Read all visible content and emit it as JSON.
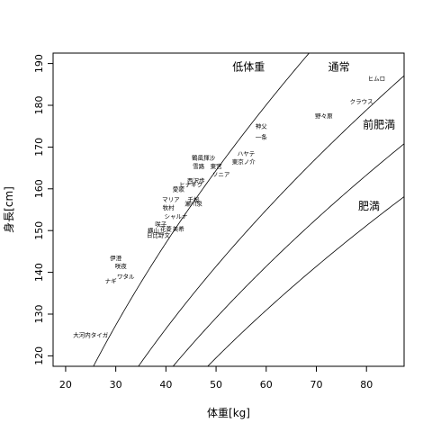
{
  "chart_data": {
    "type": "scatter",
    "title": "",
    "xlabel": "体重[kg]",
    "ylabel": "身長[cm]",
    "xlim": [
      17.5,
      87.5
    ],
    "ylim": [
      117.5,
      192.5
    ],
    "x_ticks": [
      20,
      30,
      40,
      50,
      60,
      70,
      80
    ],
    "y_ticks": [
      120,
      130,
      140,
      150,
      160,
      170,
      180,
      190
    ],
    "grid": false,
    "curves": [
      {
        "label": "低体重",
        "bmi": 18.5,
        "label_x": 56.5,
        "label_y": 188.3
      },
      {
        "label": "通常",
        "bmi": 25,
        "label_x": 74.5,
        "label_y": 188.3
      },
      {
        "label": "前肥満",
        "bmi": 30,
        "label_x": 82.5,
        "label_y": 174.5
      },
      {
        "label": "肥満",
        "bmi": 35,
        "label_x": 80.5,
        "label_y": 155
      }
    ],
    "points": [
      {
        "label": "ヒムロ",
        "x": 82,
        "y": 186.5
      },
      {
        "label": "クラウス",
        "x": 79,
        "y": 181
      },
      {
        "label": "野々原",
        "x": 71.5,
        "y": 177.5
      },
      {
        "label": "神父",
        "x": 59,
        "y": 175
      },
      {
        "label": "一条",
        "x": 59,
        "y": 172.5
      },
      {
        "label": "ハヤテ",
        "x": 56,
        "y": 168.5
      },
      {
        "label": "東京ノ介",
        "x": 55.5,
        "y": 166.5
      },
      {
        "label": "鶴風揮沙",
        "x": 47.5,
        "y": 167.5
      },
      {
        "label": "雪路",
        "x": 46.5,
        "y": 165.5
      },
      {
        "label": "東宮",
        "x": 50,
        "y": 165.5
      },
      {
        "label": "ソニア",
        "x": 51,
        "y": 163.5
      },
      {
        "label": "西沢歩",
        "x": 46,
        "y": 162
      },
      {
        "label": "ヒナギク",
        "x": 45,
        "y": 161
      },
      {
        "label": "愛歌",
        "x": 42.5,
        "y": 160
      },
      {
        "label": "マリア",
        "x": 41,
        "y": 157.5
      },
      {
        "label": "千桜",
        "x": 45.5,
        "y": 157.5
      },
      {
        "label": "瀬川泉",
        "x": 45.5,
        "y": 156.5
      },
      {
        "label": "牧村",
        "x": 40.5,
        "y": 155.5
      },
      {
        "label": "シャルナ",
        "x": 42,
        "y": 153.5
      },
      {
        "label": "咲子",
        "x": 39,
        "y": 151.5
      },
      {
        "label": "美希",
        "x": 42.5,
        "y": 150.5
      },
      {
        "label": "花菱",
        "x": 40,
        "y": 150.5
      },
      {
        "label": "横山",
        "x": 37.5,
        "y": 150
      },
      {
        "label": "日比野文",
        "x": 38.5,
        "y": 149
      },
      {
        "label": "伊澄",
        "x": 30,
        "y": 143.5
      },
      {
        "label": "咲夜",
        "x": 31,
        "y": 141.5
      },
      {
        "label": "ワタル",
        "x": 32,
        "y": 139
      },
      {
        "label": "ナギ",
        "x": 29,
        "y": 138
      },
      {
        "label": "大河内タイガ",
        "x": 25,
        "y": 125
      }
    ]
  }
}
